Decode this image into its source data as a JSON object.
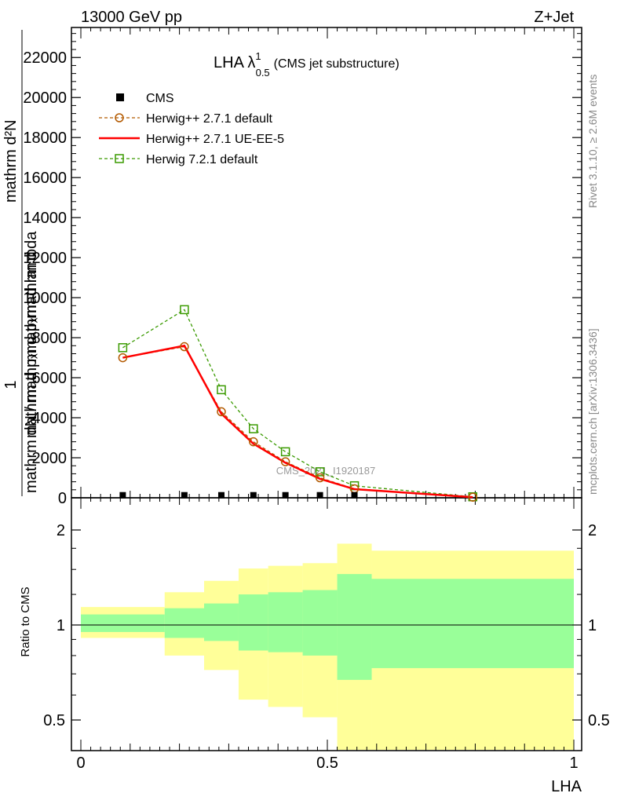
{
  "header": {
    "left": "13000 GeV pp",
    "right": "Z+Jet"
  },
  "side_text": {
    "rivet": "Rivet 3.1.10, ≥ 2.6M events",
    "mcplots": "mcplots.cern.ch [arXiv:1306.3436]"
  },
  "watermark": "CMS_2021_I1920187",
  "colors": {
    "herwig_default": "#b35a00",
    "herwig_ueee5": "#ff0000",
    "herwig721": "#3a9a00",
    "band_inner": "#99ff99",
    "band_outer": "#ffff99"
  },
  "chart_data": [
    {
      "type": "line",
      "title": "LHA λ",
      "title_sup": "1",
      "title_sub": "0.5",
      "title_suffix": "(CMS jet substructure)",
      "ylabel_lines": [
        "mathrm d²N",
        "mathrm d pₓmathrm d lambda",
        "1",
        "mathrm dN / mathrm d pₓmathrm d"
      ],
      "ylim": [
        0,
        23500
      ],
      "yticks": [
        0,
        2000,
        4000,
        6000,
        8000,
        10000,
        12000,
        14000,
        16000,
        18000,
        20000,
        22000
      ],
      "ytick_labels": [
        "0",
        "2000",
        "4000",
        "6000",
        "8000",
        "10000",
        "12000",
        "14000",
        "16000",
        "18000",
        "20000",
        "22000"
      ],
      "xlim": [
        -0.02,
        1.0
      ],
      "legend_position": "top-left",
      "series": [
        {
          "name": "CMS",
          "style": "data-square",
          "x": [
            0.085,
            0.21,
            0.285,
            0.35,
            0.415,
            0.485,
            0.555
          ],
          "values": [
            50,
            50,
            50,
            50,
            50,
            50,
            50
          ]
        },
        {
          "name": "Herwig++ 2.7.1 default",
          "style": "dashed-circle",
          "x": [
            0.085,
            0.21,
            0.285,
            0.35,
            0.415,
            0.485,
            0.555,
            0.795
          ],
          "values": [
            7000,
            7550,
            4300,
            2800,
            1800,
            1000,
            450,
            30
          ]
        },
        {
          "name": "Herwig++ 2.7.1 UE-EE-5",
          "style": "solid",
          "x": [
            0.085,
            0.21,
            0.285,
            0.35,
            0.415,
            0.485,
            0.555,
            0.795
          ],
          "values": [
            7000,
            7600,
            4200,
            2700,
            1750,
            950,
            430,
            30
          ]
        },
        {
          "name": "Herwig 7.2.1 default",
          "style": "dashed-square",
          "x": [
            0.085,
            0.21,
            0.285,
            0.35,
            0.415,
            0.485,
            0.555,
            0.795
          ],
          "values": [
            7500,
            9400,
            5400,
            3450,
            2300,
            1300,
            600,
            50
          ]
        }
      ]
    },
    {
      "type": "area",
      "ylabel": "Ratio to CMS",
      "xlabel": "LHA",
      "xlim": [
        -0.02,
        1.0
      ],
      "xticks": [
        0,
        0.5,
        1
      ],
      "xtick_labels": [
        "0",
        "0.5",
        "1"
      ],
      "ylim": [
        0.35,
        2.25
      ],
      "ytick_labels": [
        "0.5",
        "1",
        "2"
      ],
      "ytick_values": [
        0.5,
        1,
        2
      ],
      "reference": 1,
      "bins": [
        {
          "lo": 0.0,
          "hi": 0.17,
          "inner": [
            0.95,
            1.08
          ],
          "outer": [
            0.91,
            1.14
          ]
        },
        {
          "lo": 0.17,
          "hi": 0.25,
          "inner": [
            0.91,
            1.13
          ],
          "outer": [
            0.8,
            1.27
          ]
        },
        {
          "lo": 0.25,
          "hi": 0.32,
          "inner": [
            0.89,
            1.17
          ],
          "outer": [
            0.72,
            1.38
          ]
        },
        {
          "lo": 0.32,
          "hi": 0.38,
          "inner": [
            0.83,
            1.25
          ],
          "outer": [
            0.58,
            1.51
          ]
        },
        {
          "lo": 0.38,
          "hi": 0.45,
          "inner": [
            0.82,
            1.27
          ],
          "outer": [
            0.55,
            1.54
          ]
        },
        {
          "lo": 0.45,
          "hi": 0.52,
          "inner": [
            0.8,
            1.29
          ],
          "outer": [
            0.51,
            1.57
          ]
        },
        {
          "lo": 0.52,
          "hi": 0.59,
          "inner": [
            0.67,
            1.45
          ],
          "outer": [
            0.35,
            1.81
          ]
        },
        {
          "lo": 0.59,
          "hi": 1.0,
          "inner": [
            0.73,
            1.4
          ],
          "outer": [
            0.35,
            1.72
          ]
        }
      ]
    }
  ]
}
